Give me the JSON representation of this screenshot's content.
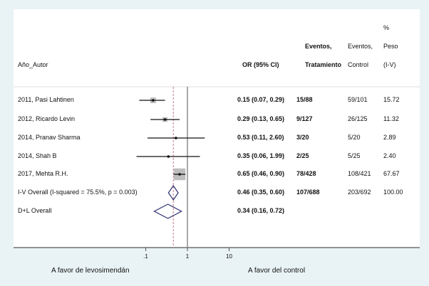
{
  "chart_data": {
    "type": "forest",
    "scale": "log",
    "x_ticks": [
      0.1,
      1,
      10
    ],
    "x_tick_labels": [
      ".1",
      "1",
      "10"
    ],
    "null_line": 1,
    "overall_dashed_line": 0.46,
    "headers": {
      "study": "Año_Autor",
      "or": "OR (95% CI)",
      "treat_line1": "Eventos,",
      "treat_line2": "Tratamiento",
      "control_line1": "Eventos,",
      "control_line2": "Control",
      "weight_line0": "%",
      "weight_line1": "Peso",
      "weight_line2": "(I-V)"
    },
    "studies": [
      {
        "label": "2011, Pasi Lahtinen",
        "or": 0.15,
        "lo": 0.07,
        "hi": 0.29,
        "or_text": "0.15 (0.07, 0.29)",
        "treat": "15/88",
        "control": "59/101",
        "weight": 15.72,
        "weight_text": "15.72"
      },
      {
        "label": "2012, Ricardo Levin",
        "or": 0.29,
        "lo": 0.13,
        "hi": 0.65,
        "or_text": "0.29 (0.13, 0.65)",
        "treat": "9/127",
        "control": "26/125",
        "weight": 11.32,
        "weight_text": "11.32"
      },
      {
        "label": "2014, Pranav Sharma",
        "or": 0.53,
        "lo": 0.11,
        "hi": 2.6,
        "or_text": "0.53 (0.11, 2.60)",
        "treat": "3/20",
        "control": "5/20",
        "weight": 2.89,
        "weight_text": "2.89"
      },
      {
        "label": "2014, Shah B",
        "or": 0.35,
        "lo": 0.06,
        "hi": 1.99,
        "or_text": "0.35 (0.06, 1.99)",
        "treat": "2/25",
        "control": "5/25",
        "weight": 2.4,
        "weight_text": "2.40"
      },
      {
        "label": "2017, Mehta R.H.",
        "or": 0.65,
        "lo": 0.46,
        "hi": 0.9,
        "or_text": "0.65 (0.46, 0.90)",
        "treat": "78/428",
        "control": "108/421",
        "weight": 67.67,
        "weight_text": "67.67"
      }
    ],
    "overall": [
      {
        "label": "I-V Overall  (I-squared = 75.5%, p = 0.003)",
        "or": 0.46,
        "lo": 0.35,
        "hi": 0.6,
        "or_text": "0.46 (0.35, 0.60)",
        "treat": "107/688",
        "control": "203/692",
        "weight_text": "100.00"
      },
      {
        "label": "D+L Overall",
        "or": 0.34,
        "lo": 0.16,
        "hi": 0.72,
        "or_text": "0.34 (0.16, 0.72)",
        "treat": "",
        "control": "",
        "weight_text": ""
      }
    ],
    "footer_left": "A favor de levosimendán",
    "footer_right": "A favor del control",
    "colors": {
      "diamond": "#2b2f6e",
      "box": "#bdbdbd",
      "dashed": "#c98f9a",
      "null_line": "#8c8c8c"
    }
  }
}
